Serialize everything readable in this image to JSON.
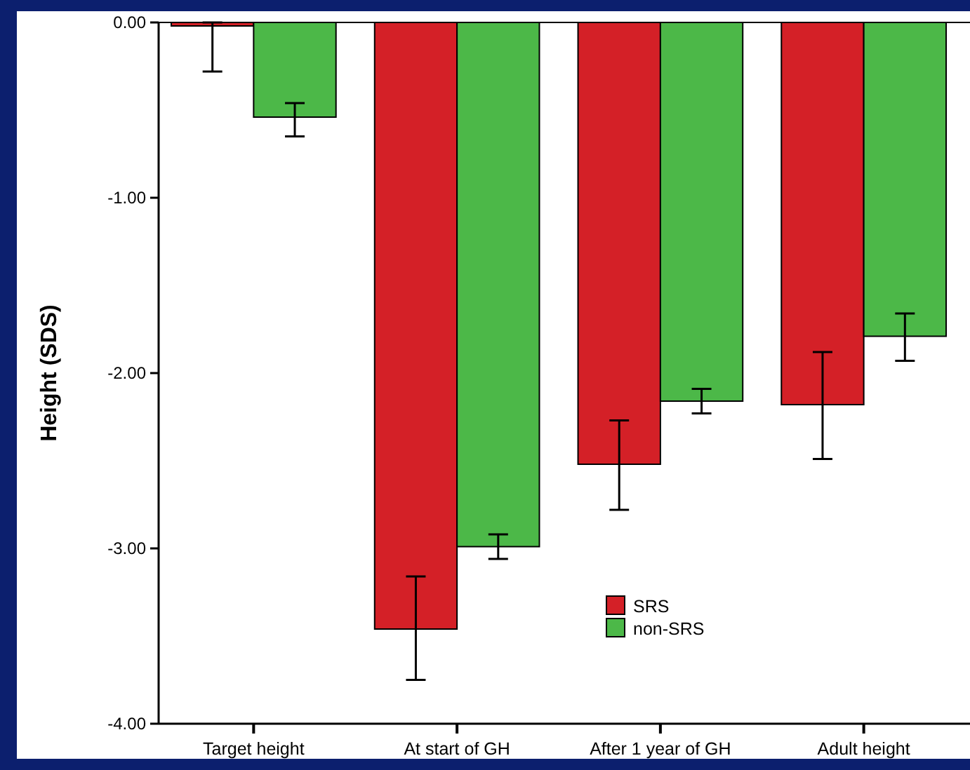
{
  "chart_data": {
    "type": "bar",
    "ylabel": "Height (SDS)",
    "categories": [
      "Target height",
      "At start of GH",
      "After 1 year of GH",
      "Adult height"
    ],
    "series": [
      {
        "name": "SRS",
        "color": "#d42027",
        "values": [
          -0.02,
          -3.46,
          -2.52,
          -2.18
        ],
        "errors": [
          [
            -0.28,
            0
          ],
          [
            -3.75,
            -3.16
          ],
          [
            -2.78,
            -2.27
          ],
          [
            -2.49,
            -1.88
          ]
        ]
      },
      {
        "name": "non-SRS",
        "color": "#4cb848",
        "values": [
          -0.54,
          -2.99,
          -2.16,
          -1.79
        ],
        "errors": [
          [
            -0.65,
            -0.46
          ],
          [
            -3.06,
            -2.92
          ],
          [
            -2.23,
            -2.09
          ],
          [
            -1.93,
            -1.66
          ]
        ]
      }
    ],
    "ylim": [
      -4,
      0
    ],
    "yticks": [
      {
        "value": 0,
        "label": "0.00"
      },
      {
        "value": -1,
        "label": "-1.00"
      },
      {
        "value": -2,
        "label": "-2.00"
      },
      {
        "value": -3,
        "label": "-3.00"
      },
      {
        "value": -4,
        "label": "-4.00"
      }
    ],
    "legend": "bottom",
    "grid": false
  }
}
